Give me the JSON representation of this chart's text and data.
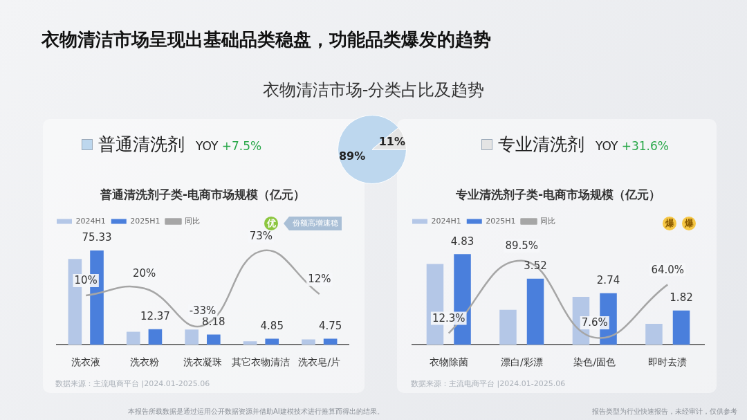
{
  "chart_data": [
    {
      "type": "other",
      "title": "衣物清洁市场呈现出基础品类稳盘，功能品类爆发的趋势",
      "annotations": [
        "本报告所载数据是通过运用公开数据资源并借助AI建模技术进行推算而得出的结果。",
        "报告类型为行业快速报告，未经审计，仅供参考"
      ]
    },
    {
      "type": "pie",
      "title": "衣物清洁市场-分类占比及趋势",
      "categories": [
        "普通清洗剂",
        "专业清洗剂"
      ],
      "values": [
        89,
        11
      ],
      "colors": [
        "#bdd7ee",
        "#e4e4e4"
      ],
      "value_labels": [
        "89%",
        "11%"
      ],
      "legend": "top",
      "annotations": [
        "YOY +7.5%",
        "YOY +31.6%"
      ]
    },
    {
      "type": "bar",
      "title": "普通清洗剂子类-电商市场规模（亿元）",
      "categories": [
        "洗衣液",
        "洗衣粉",
        "洗衣凝珠",
        "其它衣物清洁",
        "洗衣皂/片"
      ],
      "series": [
        {
          "name": "2024H1",
          "color": "#b4c7e7",
          "values": [
            68.5,
            10.3,
            12.2,
            2.8,
            4.24
          ]
        },
        {
          "name": "2025H1",
          "color": "#4a7fdc",
          "values": [
            75.33,
            12.37,
            8.18,
            4.85,
            4.75
          ],
          "value_labels": [
            "75.33",
            "12.37",
            "8.18",
            "4.85",
            "4.75"
          ]
        },
        {
          "name": "同比",
          "type": "line",
          "axis": "y2",
          "color": "#a6a6a6",
          "values": [
            10,
            20,
            -33,
            73,
            12
          ],
          "value_labels": [
            "10%",
            "20%",
            "-33%",
            "73%",
            "12%"
          ]
        }
      ],
      "tick_labels": "x",
      "legend": "top",
      "annotations": [
        "优",
        "份额高增速稳",
        "数据来源：主流电商平台 |2024.01-2025.06"
      ]
    },
    {
      "type": "bar",
      "title": "专业清洗剂子类-电商市场规模（亿元）",
      "categories": [
        "衣物除菌",
        "漂白/彩漂",
        "染色/固色",
        "即时去渍"
      ],
      "series": [
        {
          "name": "2024H1",
          "color": "#b4c7e7",
          "values": [
            4.3,
            1.86,
            2.55,
            1.11
          ]
        },
        {
          "name": "2025H1",
          "color": "#4a7fdc",
          "values": [
            4.83,
            3.52,
            2.74,
            1.82
          ],
          "value_labels": [
            "4.83",
            "3.52",
            "2.74",
            "1.82"
          ]
        },
        {
          "name": "同比",
          "type": "line",
          "axis": "y2",
          "color": "#a6a6a6",
          "values": [
            12.3,
            89.5,
            7.6,
            64.0
          ],
          "value_labels": [
            "12.3%",
            "89.5%",
            "7.6%",
            "64.0%"
          ]
        }
      ],
      "tick_labels": "x",
      "legend": "top",
      "annotations": [
        "爆",
        "爆",
        "数据来源：主流电商平台 |2024.01-2025.06"
      ]
    }
  ]
}
